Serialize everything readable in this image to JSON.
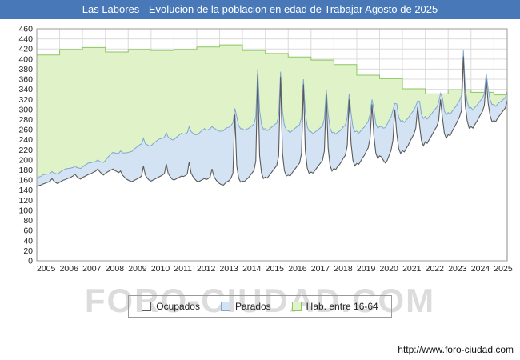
{
  "title_bar": {
    "title": "Las Labores - Evolucion de la poblacion en edad de Trabajar Agosto de 2025",
    "bg": "#4878b8"
  },
  "watermark": "FORO-CIUDAD.COM",
  "footer": {
    "url": "http://www.foro-ciudad.com"
  },
  "legend": [
    {
      "label": "Ocupados",
      "fill": "#ffffff",
      "stroke": "#5a5a5a"
    },
    {
      "label": "Parados",
      "fill": "#d3e3f3",
      "stroke": "#7fa8d0"
    },
    {
      "label": "Hab. entre 16-64",
      "fill": "#e0f3c8",
      "stroke": "#8cc660"
    }
  ],
  "chart_data": {
    "type": "area",
    "title": "Las Labores - Evolucion de la poblacion en edad de Trabajar Agosto de 2025",
    "xlabel": "",
    "ylabel": "",
    "x_start_year": 2005,
    "x_end": "2025-08",
    "ylim": [
      0,
      460
    ],
    "ytick": 20,
    "grid": true,
    "legend_position": "bottom",
    "note": "Monthly data Jan 2005 - Aug 2025. Parados area is drawn stacked on top of Ocupados (blue envelope = Ocupados + Parados). Hab. entre 16-64 is a yearly stepped series.",
    "series": [
      {
        "name": "Hab. entre 16-64",
        "cadence": "yearly",
        "values": [
          408,
          419,
          423,
          414,
          419,
          417,
          419,
          424,
          428,
          417,
          411,
          404,
          398,
          389,
          368,
          361,
          341,
          331,
          339,
          334,
          329
        ]
      },
      {
        "name": "Ocupados",
        "cadence": "monthly_by_year",
        "values": [
          [
            147,
            149,
            150,
            152,
            153,
            155,
            156,
            158,
            163,
            158,
            155,
            153
          ],
          [
            156,
            158,
            160,
            161,
            163,
            164,
            166,
            168,
            172,
            167,
            164,
            162
          ],
          [
            165,
            167,
            169,
            171,
            172,
            174,
            176,
            178,
            182,
            177,
            173,
            170
          ],
          [
            173,
            176,
            178,
            180,
            182,
            179,
            177,
            175,
            178,
            170,
            166,
            162
          ],
          [
            160,
            158,
            157,
            159,
            161,
            163,
            165,
            168,
            188,
            170,
            164,
            160
          ],
          [
            158,
            160,
            162,
            164,
            166,
            168,
            170,
            173,
            192,
            173,
            167,
            162
          ],
          [
            160,
            162,
            164,
            166,
            168,
            167,
            169,
            172,
            196,
            174,
            167,
            162
          ],
          [
            158,
            157,
            159,
            161,
            163,
            161,
            163,
            166,
            182,
            167,
            161,
            156
          ],
          [
            153,
            151,
            150,
            154,
            157,
            159,
            164,
            174,
            290,
            188,
            164,
            156
          ],
          [
            158,
            157,
            161,
            164,
            169,
            174,
            179,
            198,
            370,
            208,
            174,
            163
          ],
          [
            166,
            164,
            169,
            174,
            179,
            184,
            189,
            208,
            365,
            213,
            179,
            168
          ],
          [
            170,
            168,
            174,
            179,
            184,
            189,
            194,
            213,
            350,
            218,
            184,
            173
          ],
          [
            176,
            174,
            179,
            184,
            189,
            194,
            199,
            218,
            330,
            223,
            189,
            178
          ],
          [
            183,
            181,
            187,
            191,
            197,
            204,
            209,
            228,
            320,
            233,
            199,
            188
          ],
          [
            193,
            191,
            197,
            204,
            209,
            217,
            224,
            243,
            310,
            248,
            214,
            203
          ],
          [
            208,
            206,
            199,
            194,
            199,
            209,
            219,
            239,
            300,
            253,
            223,
            213
          ],
          [
            218,
            216,
            223,
            229,
            237,
            244,
            251,
            263,
            305,
            268,
            238,
            228
          ],
          [
            236,
            233,
            240,
            246,
            253,
            260,
            266,
            278,
            320,
            283,
            253,
            243
          ],
          [
            250,
            248,
            256,
            263,
            270,
            278,
            286,
            298,
            405,
            308,
            278,
            263
          ],
          [
            266,
            263,
            270,
            276,
            283,
            290,
            296,
            308,
            360,
            313,
            288,
            276
          ],
          [
            278,
            276,
            283,
            288,
            293,
            298,
            303,
            318
          ]
        ]
      },
      {
        "name": "Parados",
        "cadence": "monthly_by_year",
        "values": [
          [
            16,
            17,
            17,
            18,
            18,
            17,
            16,
            15,
            14,
            16,
            18,
            19
          ],
          [
            19,
            20,
            20,
            21,
            20,
            19,
            18,
            17,
            16,
            18,
            20,
            21
          ],
          [
            21,
            22,
            22,
            23,
            22,
            21,
            20,
            19,
            18,
            20,
            23,
            25
          ],
          [
            26,
            28,
            30,
            32,
            33,
            35,
            36,
            38,
            40,
            44,
            48,
            52
          ],
          [
            55,
            58,
            60,
            62,
            63,
            64,
            65,
            64,
            55,
            62,
            66,
            68
          ],
          [
            70,
            72,
            73,
            74,
            75,
            74,
            73,
            72,
            62,
            72,
            76,
            78
          ],
          [
            80,
            82,
            83,
            84,
            85,
            84,
            83,
            82,
            70,
            82,
            86,
            88
          ],
          [
            92,
            95,
            97,
            98,
            99,
            98,
            97,
            96,
            84,
            96,
            100,
            102
          ],
          [
            104,
            106,
            108,
            108,
            107,
            106,
            104,
            100,
            12,
            98,
            104,
            106
          ],
          [
            104,
            102,
            100,
            98,
            96,
            94,
            92,
            88,
            10,
            90,
            96,
            98
          ],
          [
            96,
            94,
            92,
            90,
            88,
            86,
            84,
            80,
            10,
            84,
            90,
            92
          ],
          [
            88,
            86,
            84,
            82,
            80,
            78,
            76,
            72,
            10,
            76,
            82,
            84
          ],
          [
            80,
            78,
            76,
            74,
            72,
            70,
            68,
            64,
            10,
            68,
            74,
            76
          ],
          [
            72,
            70,
            68,
            66,
            64,
            62,
            60,
            56,
            10,
            60,
            66,
            68
          ],
          [
            64,
            62,
            60,
            58,
            56,
            54,
            52,
            48,
            10,
            52,
            58,
            60
          ],
          [
            58,
            60,
            64,
            70,
            72,
            70,
            66,
            60,
            12,
            58,
            62,
            64
          ],
          [
            60,
            58,
            56,
            54,
            52,
            50,
            48,
            44,
            12,
            48,
            52,
            54
          ],
          [
            50,
            48,
            46,
            44,
            42,
            40,
            38,
            36,
            12,
            40,
            44,
            46
          ],
          [
            44,
            42,
            40,
            38,
            36,
            34,
            32,
            30,
            12,
            34,
            38,
            40
          ],
          [
            38,
            36,
            34,
            32,
            30,
            28,
            26,
            24,
            12,
            28,
            32,
            34
          ],
          [
            32,
            30,
            28,
            26,
            24,
            22,
            20,
            18
          ]
        ]
      }
    ]
  }
}
